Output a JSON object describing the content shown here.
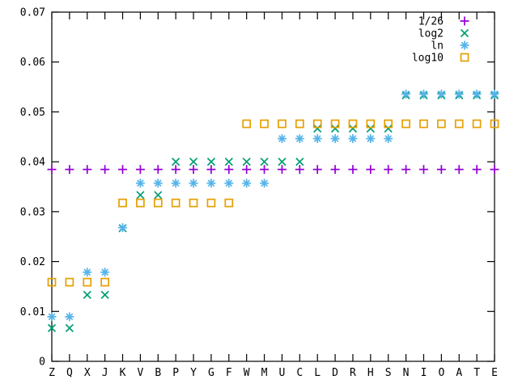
{
  "chart_data": {
    "type": "scatter",
    "title": "",
    "xlabel": "",
    "ylabel": "",
    "categories": [
      "Z",
      "Q",
      "X",
      "J",
      "K",
      "V",
      "B",
      "P",
      "Y",
      "G",
      "F",
      "W",
      "M",
      "U",
      "C",
      "L",
      "D",
      "R",
      "H",
      "S",
      "N",
      "I",
      "O",
      "A",
      "T",
      "E"
    ],
    "ylim": [
      0,
      0.07
    ],
    "yticks": [
      0,
      0.01,
      0.02,
      0.03,
      0.04,
      0.05,
      0.06,
      0.07
    ],
    "ytick_labels": [
      "0",
      "0.01",
      "0.02",
      "0.03",
      "0.04",
      "0.05",
      "0.06",
      "0.07"
    ],
    "grid": false,
    "legend_position": "top-right-inside",
    "background_color": "#ffffff",
    "border_color": "#000000",
    "series": [
      {
        "name": "1/26",
        "marker": "plus",
        "color": "#9400d3",
        "values": [
          0.03846,
          0.03846,
          0.03846,
          0.03846,
          0.03846,
          0.03846,
          0.03846,
          0.03846,
          0.03846,
          0.03846,
          0.03846,
          0.03846,
          0.03846,
          0.03846,
          0.03846,
          0.03846,
          0.03846,
          0.03846,
          0.03846,
          0.03846,
          0.03846,
          0.03846,
          0.03846,
          0.03846,
          0.03846,
          0.03846
        ]
      },
      {
        "name": "log2",
        "marker": "cross",
        "color": "#009e73",
        "values": [
          0.00667,
          0.00667,
          0.01333,
          0.01333,
          0.02667,
          0.03333,
          0.03333,
          0.04,
          0.04,
          0.04,
          0.04,
          0.04,
          0.04,
          0.04,
          0.04,
          0.04667,
          0.04667,
          0.04667,
          0.04667,
          0.04667,
          0.05333,
          0.05333,
          0.05333,
          0.05333,
          0.05333,
          0.05333
        ]
      },
      {
        "name": "ln",
        "marker": "asterisk",
        "color": "#56b4e9",
        "values": [
          0.00893,
          0.00893,
          0.01786,
          0.01786,
          0.02679,
          0.03571,
          0.03571,
          0.03571,
          0.03571,
          0.03571,
          0.03571,
          0.03571,
          0.03571,
          0.04464,
          0.04464,
          0.04464,
          0.04464,
          0.04464,
          0.04464,
          0.04464,
          0.05357,
          0.05357,
          0.05357,
          0.05357,
          0.05357,
          0.05357
        ]
      },
      {
        "name": "log10",
        "marker": "open-square",
        "color": "#e69f00",
        "values": [
          0.01587,
          0.01587,
          0.01587,
          0.01587,
          0.03175,
          0.03175,
          0.03175,
          0.03175,
          0.03175,
          0.03175,
          0.03175,
          0.04762,
          0.04762,
          0.04762,
          0.04762,
          0.04762,
          0.04762,
          0.04762,
          0.04762,
          0.04762,
          0.04762,
          0.04762,
          0.04762,
          0.04762,
          0.04762,
          0.04762
        ]
      }
    ]
  }
}
